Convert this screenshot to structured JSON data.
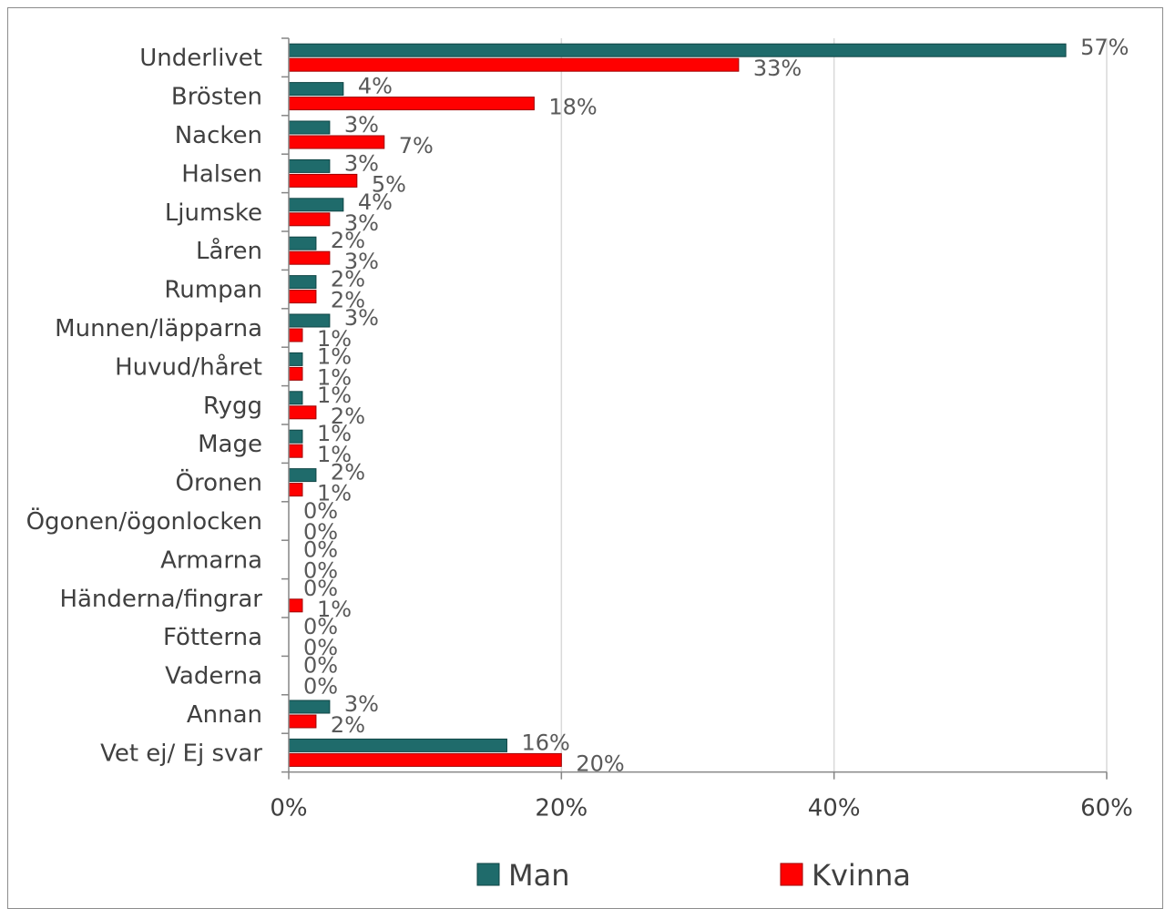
{
  "chart_data": {
    "type": "bar",
    "orientation": "horizontal",
    "categories": [
      "Underlivet",
      "Brösten",
      "Nacken",
      "Halsen",
      "Ljumske",
      "Låren",
      "Rumpan",
      "Munnen/läpparna",
      "Huvud/håret",
      "Rygg",
      "Mage",
      "Öronen",
      "Ögonen/ögonlocken",
      "Armarna",
      "Händerna/fingrar",
      "Fötterna",
      "Vaderna",
      "Annan",
      "Vet ej/ Ej svar"
    ],
    "series": [
      {
        "name": "Man",
        "color": "#1f6b6b",
        "values": [
          57,
          4,
          3,
          3,
          4,
          2,
          2,
          3,
          1,
          1,
          1,
          2,
          0,
          0,
          0,
          0,
          0,
          3,
          16
        ],
        "labels": [
          "57%",
          "4%",
          "3%",
          "3%",
          "4%",
          "2%",
          "2%",
          "3%",
          "1%",
          "1%",
          "1%",
          "2%",
          "0%",
          "0%",
          "0%",
          "0%",
          "0%",
          "3%",
          "16%"
        ]
      },
      {
        "name": "Kvinna",
        "color": "#ff0000",
        "values": [
          33,
          18,
          7,
          5,
          3,
          3,
          2,
          1,
          1,
          2,
          1,
          1,
          0,
          0,
          1,
          0,
          0,
          2,
          20
        ],
        "labels": [
          "33%",
          "18%",
          "7%",
          "5%",
          "3%",
          "3%",
          "2%",
          "1%",
          "1%",
          "2%",
          "1%",
          "1%",
          "0%",
          "0%",
          "1%",
          "0%",
          "0%",
          "2%",
          "20%"
        ]
      }
    ],
    "xlim": [
      0,
      60
    ],
    "xticks": [
      0,
      20,
      40,
      60
    ],
    "xtick_labels": [
      "0%",
      "20%",
      "40%",
      "60%"
    ],
    "grid": "vertical",
    "legend_position": "bottom",
    "title": "",
    "xlabel": "",
    "ylabel": ""
  }
}
